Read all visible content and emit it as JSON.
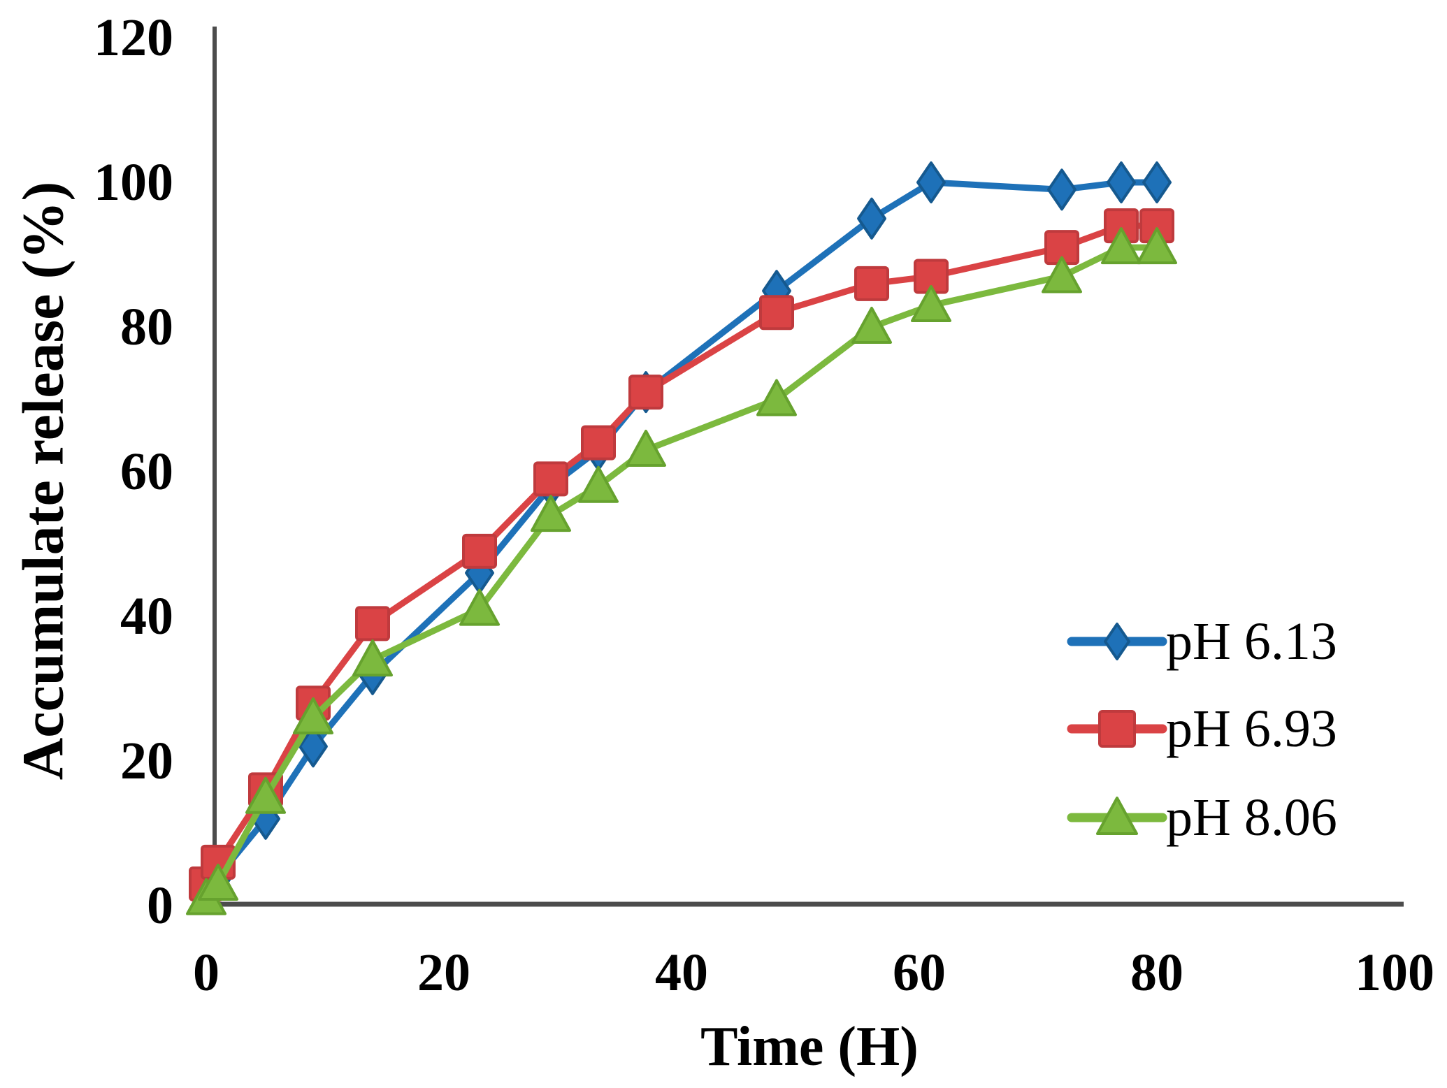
{
  "page": {
    "background": "#ffffff"
  },
  "figure": {
    "axis_color": "#4c4c4c",
    "text_color": "#000000"
  },
  "chart_data": {
    "type": "line",
    "title": "",
    "xlabel": "Time (H)",
    "ylabel": "Accumulate release (%)",
    "xlim": [
      0,
      100
    ],
    "ylim": [
      0,
      120
    ],
    "xticks": [
      0,
      20,
      40,
      60,
      80,
      100
    ],
    "yticks": [
      0,
      20,
      40,
      60,
      80,
      100,
      120
    ],
    "grid": false,
    "legend_position": "middle-right",
    "x": [
      0,
      1,
      5,
      9,
      14,
      23,
      29,
      33,
      37,
      48,
      56,
      61,
      72,
      77,
      80
    ],
    "series": [
      {
        "name": "pH 6.13",
        "marker": "diamond",
        "color": "#1e71b8",
        "edge": "#15598f",
        "values": [
          2,
          4,
          12,
          22,
          32,
          46,
          58,
          63,
          71,
          85,
          95,
          100,
          99,
          100,
          100
        ]
      },
      {
        "name": "pH 6.93",
        "marker": "square",
        "color": "#da4345",
        "edge": "#bf3a3d",
        "values": [
          3,
          6,
          16,
          28,
          39,
          49,
          59,
          64,
          71,
          82,
          86,
          87,
          91,
          94,
          94
        ]
      },
      {
        "name": "pH 8.06",
        "marker": "triangle",
        "color": "#7cb93e",
        "edge": "#66a22e",
        "values": [
          1,
          3,
          15,
          26,
          34,
          41,
          54,
          58,
          63,
          70,
          80,
          83,
          87,
          91,
          91
        ]
      }
    ]
  }
}
